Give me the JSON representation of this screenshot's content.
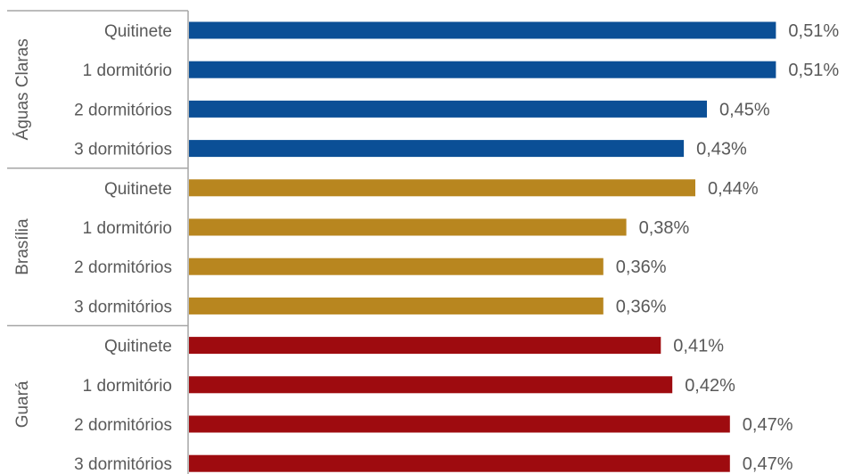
{
  "chart_data": {
    "type": "bar",
    "orientation": "horizontal",
    "title": "",
    "xlabel": "",
    "ylabel": "",
    "xlim": [
      0,
      0.6
    ],
    "grid": false,
    "legend": "none",
    "groups": [
      {
        "name": "Águas Claras",
        "color": "#0b4f96",
        "categories": [
          "Quitinete",
          "1 dormitório",
          "2 dormitórios",
          "3 dormitórios"
        ],
        "values": [
          0.51,
          0.51,
          0.45,
          0.43
        ],
        "labels": [
          "0,51%",
          "0,51%",
          "0,45%",
          "0,43%"
        ]
      },
      {
        "name": "Brasília",
        "color": "#b8861f",
        "categories": [
          "Quitinete",
          "1 dormitório",
          "2 dormitórios",
          "3 dormitórios"
        ],
        "values": [
          0.44,
          0.38,
          0.36,
          0.36
        ],
        "labels": [
          "0,44%",
          "0,38%",
          "0,36%",
          "0,36%"
        ]
      },
      {
        "name": "Guará",
        "color": "#9e0b0f",
        "categories": [
          "Quitinete",
          "1 dormitório",
          "2 dormitórios",
          "3 dormitórios"
        ],
        "values": [
          0.41,
          0.42,
          0.47,
          0.47
        ],
        "labels": [
          "0,41%",
          "0,42%",
          "0,47%",
          "0,47%"
        ]
      }
    ]
  }
}
